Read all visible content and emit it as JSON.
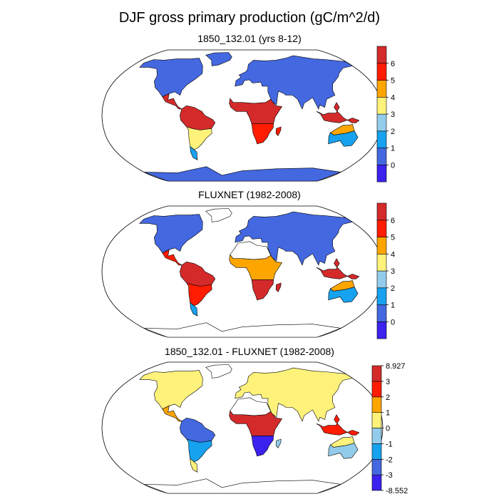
{
  "title": "DJF gross primary production (gC/m^2/d)",
  "colors": {
    "abs_palette": [
      "#3B22EE",
      "#4468E0",
      "#16A2EE",
      "#93CCEA",
      "#FFF27A",
      "#FFA500",
      "#FF1C00",
      "#D42A2A"
    ],
    "diff_palette": [
      "#3B22EE",
      "#4468E0",
      "#16A2EE",
      "#93CCEA",
      "#FFF27A",
      "#FFA500",
      "#FF1C00",
      "#D42A2A"
    ],
    "coast": "#000000",
    "ocean": "#ffffff"
  },
  "chart_data": [
    {
      "type": "heatmap",
      "title": "1850_132.01 (yrs 8-12)",
      "projection": "robinson",
      "colorbar_ticks": [
        "0",
        "1",
        "2",
        "3",
        "4",
        "5",
        "6"
      ],
      "regions": [
        {
          "name": "amazon",
          "value": 6.5
        },
        {
          "name": "central-america",
          "value": 6.5
        },
        {
          "name": "southern-south-america",
          "value": 3.5
        },
        {
          "name": "patagonia",
          "value": 1.5
        },
        {
          "name": "africa-tropics",
          "value": 6.5
        },
        {
          "name": "southern-africa",
          "value": 5.5
        },
        {
          "name": "madagascar",
          "value": 5
        },
        {
          "name": "maritime-southeast-asia",
          "value": 6.5
        },
        {
          "name": "australia-north",
          "value": 4
        },
        {
          "name": "australia",
          "value": 1
        },
        {
          "name": "north-america",
          "value": 0.5
        },
        {
          "name": "eurasia",
          "value": 0.5
        },
        {
          "name": "greenland",
          "value": 0.5
        },
        {
          "name": "antarctica",
          "value": 0.5
        }
      ]
    },
    {
      "type": "heatmap",
      "title": "FLUXNET (1982-2008)",
      "projection": "robinson",
      "colorbar_ticks": [
        "0",
        "1",
        "2",
        "3",
        "4",
        "5",
        "6"
      ],
      "regions": [
        {
          "name": "amazon",
          "value": 6.5
        },
        {
          "name": "central-america",
          "value": 5.5
        },
        {
          "name": "southern-south-america",
          "value": 5
        },
        {
          "name": "patagonia",
          "value": 1.5
        },
        {
          "name": "africa-tropics",
          "value": 4
        },
        {
          "name": "southern-africa",
          "value": 6.5
        },
        {
          "name": "madagascar",
          "value": 6
        },
        {
          "name": "maritime-southeast-asia",
          "value": 6.5
        },
        {
          "name": "australia-north",
          "value": 4
        },
        {
          "name": "australia",
          "value": 1
        },
        {
          "name": "north-america",
          "value": 0.5
        },
        {
          "name": "eurasia",
          "value": 0.5
        },
        {
          "name": "sahara",
          "value": null
        },
        {
          "name": "greenland",
          "value": null
        },
        {
          "name": "antarctica",
          "value": null
        }
      ]
    },
    {
      "type": "heatmap",
      "title": "1850_132.01 - FLUXNET (1982-2008)",
      "projection": "robinson",
      "colorbar_ticks": [
        "8.927",
        "3",
        "2",
        "1",
        "0",
        "-1",
        "-2",
        "-3",
        "-8.552"
      ],
      "regions": [
        {
          "name": "amazon",
          "value": -2.5
        },
        {
          "name": "central-america",
          "value": 1.5
        },
        {
          "name": "southern-south-america",
          "value": -2
        },
        {
          "name": "patagonia",
          "value": 0.5
        },
        {
          "name": "africa-tropics",
          "value": 3
        },
        {
          "name": "southern-africa",
          "value": -3.5
        },
        {
          "name": "madagascar",
          "value": -1
        },
        {
          "name": "maritime-southeast-asia",
          "value": 2.5
        },
        {
          "name": "australia-north",
          "value": 0.5
        },
        {
          "name": "australia",
          "value": -0.5
        },
        {
          "name": "north-america",
          "value": 0.5
        },
        {
          "name": "eurasia",
          "value": 0.5
        },
        {
          "name": "sahara",
          "value": null
        },
        {
          "name": "greenland",
          "value": null
        },
        {
          "name": "antarctica",
          "value": null
        }
      ]
    }
  ]
}
